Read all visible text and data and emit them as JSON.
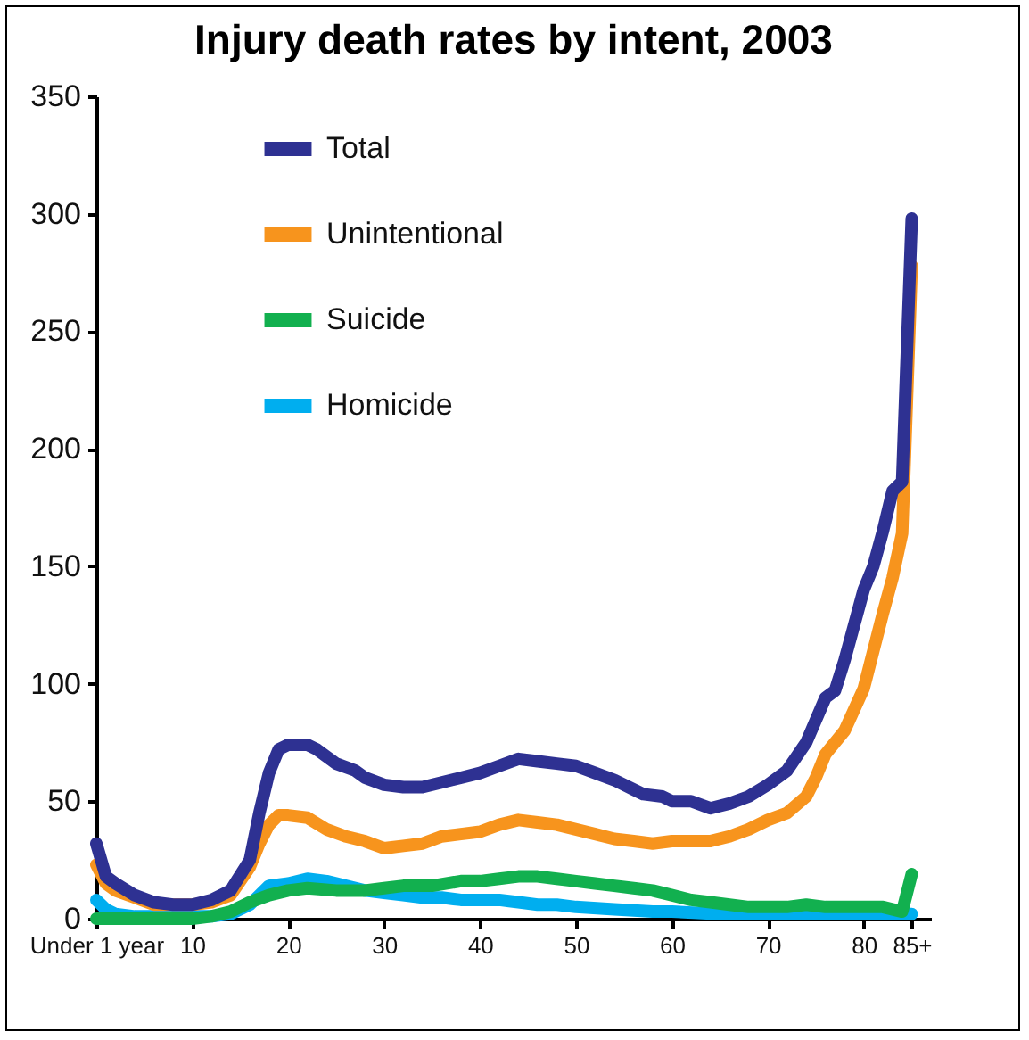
{
  "chart_data": {
    "type": "line",
    "title": "Injury death rates by intent, 2003",
    "xlim": [
      0,
      87
    ],
    "ylim": [
      0,
      350
    ],
    "xticks": [
      {
        "value": 0,
        "label": "Under 1 year"
      },
      10,
      20,
      30,
      40,
      50,
      60,
      70,
      80,
      {
        "value": 85,
        "label": "85+"
      }
    ],
    "yticks": [
      0,
      50,
      100,
      150,
      200,
      250,
      300,
      350
    ],
    "grid": false,
    "legend": "top left",
    "line_style": "solid",
    "series": [
      {
        "name": "Total",
        "color": "#2e3192",
        "x": [
          0,
          1,
          2,
          4,
          6,
          8,
          10,
          12,
          14,
          16,
          17,
          18,
          19,
          20,
          22,
          23,
          25,
          27,
          28,
          30,
          32,
          34,
          36,
          38,
          40,
          42,
          44,
          46,
          48,
          50,
          52,
          54,
          56,
          57,
          59,
          60,
          62,
          64,
          66,
          68,
          70,
          72,
          74,
          76,
          77,
          78,
          80,
          81,
          82,
          83,
          84,
          85
        ],
        "values": [
          32,
          18,
          15,
          10,
          7,
          6,
          6,
          8,
          12,
          25,
          45,
          62,
          72,
          74,
          74,
          72,
          66,
          63,
          60,
          57,
          56,
          56,
          58,
          60,
          62,
          65,
          68,
          67,
          66,
          65,
          62,
          59,
          55,
          53,
          52,
          50,
          50,
          47,
          49,
          52,
          57,
          63,
          75,
          94,
          97,
          110,
          140,
          150,
          165,
          182,
          186,
          298
        ]
      },
      {
        "name": "Unintentional",
        "color": "#f7941d",
        "x": [
          0,
          1,
          2,
          4,
          6,
          8,
          10,
          12,
          14,
          16,
          17,
          18,
          19,
          20,
          22,
          24,
          26,
          28,
          30,
          32,
          34,
          36,
          38,
          40,
          42,
          44,
          46,
          48,
          50,
          52,
          54,
          56,
          58,
          60,
          62,
          64,
          66,
          68,
          70,
          72,
          74,
          75,
          76,
          78,
          80,
          82,
          83,
          84,
          85
        ],
        "values": [
          23,
          15,
          12,
          9,
          6,
          6,
          6,
          7,
          10,
          22,
          32,
          40,
          44,
          44,
          43,
          38,
          35,
          33,
          30,
          31,
          32,
          35,
          36,
          37,
          40,
          42,
          41,
          40,
          38,
          36,
          34,
          33,
          32,
          33,
          33,
          33,
          35,
          38,
          42,
          45,
          52,
          60,
          70,
          80,
          98,
          130,
          145,
          164,
          278
        ]
      },
      {
        "name": "Suicide",
        "color": "#12b04f",
        "x": [
          0,
          5,
          10,
          12,
          14,
          16,
          18,
          20,
          22,
          25,
          28,
          30,
          32,
          35,
          38,
          40,
          42,
          44,
          46,
          48,
          50,
          52,
          54,
          56,
          58,
          60,
          62,
          64,
          66,
          68,
          70,
          72,
          74,
          76,
          78,
          80,
          82,
          84,
          85
        ],
        "values": [
          0,
          0,
          0,
          1,
          3,
          7,
          10,
          12,
          13,
          12,
          12,
          13,
          14,
          14,
          16,
          16,
          17,
          18,
          18,
          17,
          16,
          15,
          14,
          13,
          12,
          10,
          8,
          7,
          6,
          5,
          5,
          5,
          6,
          5,
          5,
          5,
          5,
          3,
          19
        ]
      },
      {
        "name": "Homicide",
        "color": "#00aeef",
        "x": [
          0,
          1,
          2,
          4,
          6,
          8,
          10,
          12,
          14,
          16,
          18,
          20,
          22,
          24,
          26,
          28,
          30,
          32,
          34,
          36,
          38,
          40,
          42,
          44,
          46,
          48,
          50,
          54,
          58,
          60,
          65,
          70,
          75,
          80,
          85
        ],
        "values": [
          8,
          4,
          2,
          1,
          1,
          1,
          1,
          1,
          2,
          6,
          14,
          15,
          17,
          16,
          14,
          12,
          11,
          10,
          9,
          9,
          8,
          8,
          8,
          7,
          6,
          6,
          5,
          4,
          3,
          3,
          2,
          2,
          2,
          2,
          2
        ]
      }
    ]
  }
}
